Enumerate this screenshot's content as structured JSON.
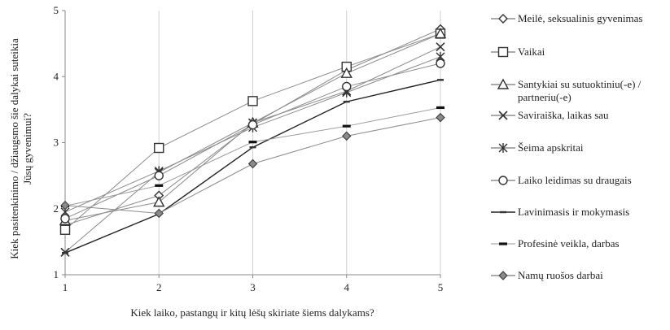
{
  "chart_data": {
    "type": "line",
    "title": "",
    "xlabel": "Kiek laiko, pastangų ir kitų lėšų skiriate šiems dalykams?",
    "ylabel_lines": [
      "Kiek pasitenkinimo / džiaugsmo šie dalykai suteikia",
      "Jūsų gyvenimui?"
    ],
    "x": [
      1,
      2,
      3,
      4,
      5
    ],
    "xticks": [
      "1",
      "2",
      "3",
      "4",
      "5"
    ],
    "ylim": [
      1,
      5
    ],
    "yticks": [
      "1",
      "2",
      "3",
      "4",
      "5"
    ],
    "grid": "vertical",
    "legend_position": "right",
    "series": [
      {
        "name": "Meilė,  seksualinis gyvenimas",
        "marker": "diamond-open",
        "values": [
          1.75,
          2.2,
          3.28,
          4.1,
          4.72
        ]
      },
      {
        "name": "Vaikai",
        "marker": "square",
        "values": [
          1.68,
          2.92,
          3.63,
          4.15,
          4.65
        ]
      },
      {
        "name": "Santykiai su sutuoktiniu(-e) / partneriu(-e)",
        "name_lines": [
          "Santykiai su sutuoktiniu(-e) /",
          "partneriu(-e)"
        ],
        "marker": "triangle-open",
        "values": [
          1.82,
          2.1,
          3.3,
          4.05,
          4.65
        ]
      },
      {
        "name": "Saviraiška, laikas sau",
        "marker": "x",
        "values": [
          1.34,
          2.55,
          3.3,
          3.78,
          4.45
        ]
      },
      {
        "name": "Šeima apskritai",
        "marker": "star",
        "values": [
          1.95,
          2.57,
          3.23,
          3.76,
          4.3
        ]
      },
      {
        "name": "Laiko leidimas su draugais",
        "marker": "circle",
        "values": [
          1.85,
          2.5,
          3.27,
          3.85,
          4.2
        ]
      },
      {
        "name": "Lavinimasis ir mokymasis",
        "marker": "dash",
        "values": [
          1.33,
          1.92,
          2.93,
          3.62,
          3.95
        ]
      },
      {
        "name": "Profesinė veikla, darbas",
        "marker": "bar",
        "values": [
          2.04,
          2.35,
          3.01,
          3.25,
          3.53
        ]
      },
      {
        "name": "Namų ruošos darbai",
        "marker": "diamond-filled",
        "values": [
          2.05,
          1.93,
          2.68,
          3.1,
          3.38
        ]
      }
    ]
  }
}
